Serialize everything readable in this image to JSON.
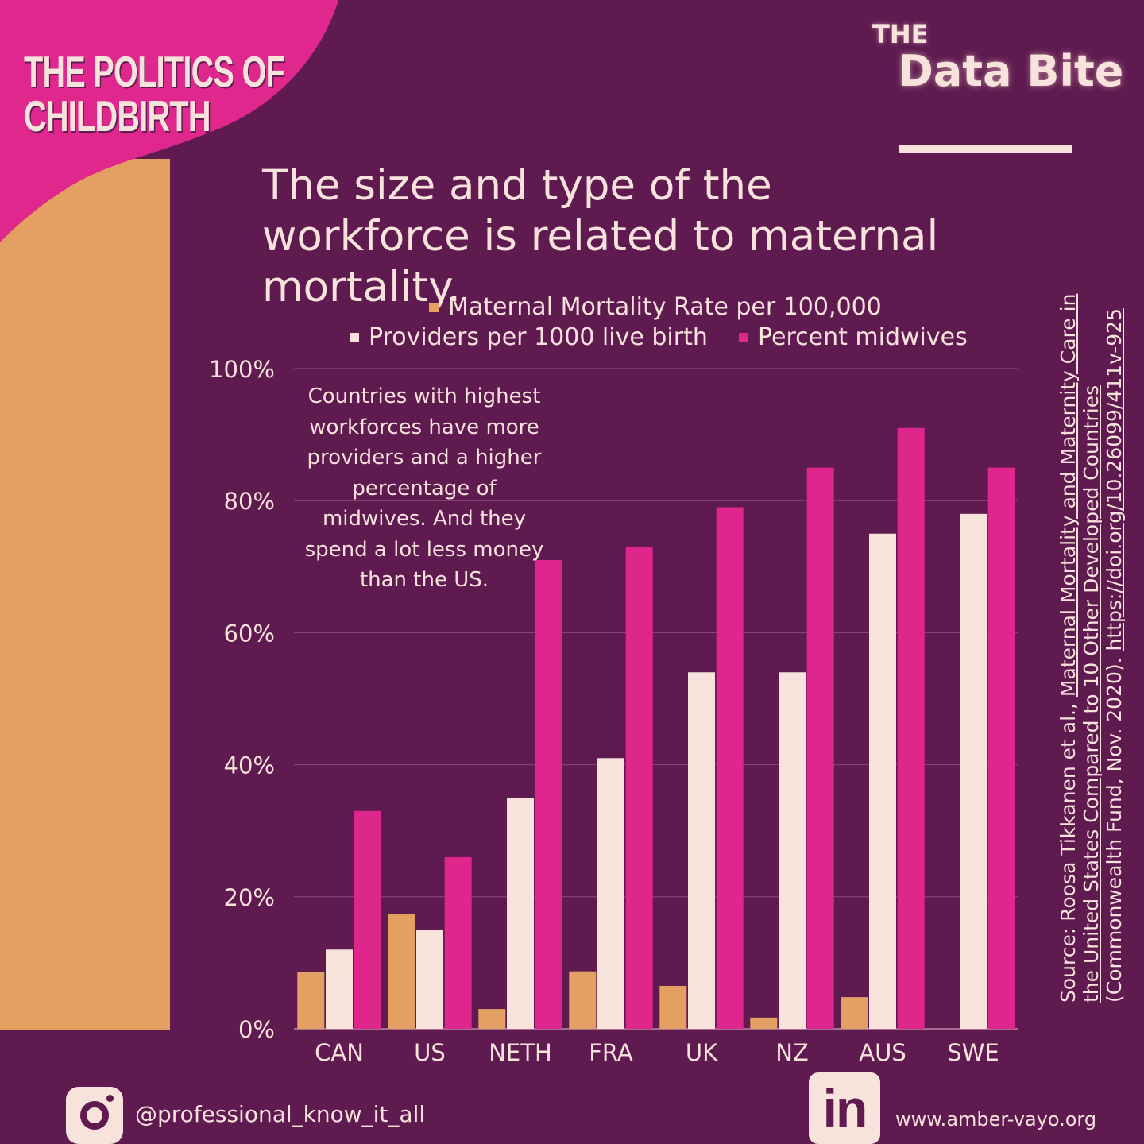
{
  "header": {
    "series_title_line1": "THE POLITICS OF",
    "series_title_line2": "CHILDBIRTH",
    "brand_the": "THE",
    "brand_name": "Data Bite"
  },
  "headline": "The size and type of the workforce is related to maternal mortality.",
  "annotation": "Countries with highest workforces have more providers and a higher percentage of midwives. And they spend a lot less money than the US.",
  "source": {
    "prefix": "Source: Roosa Tikkanen et al., ",
    "title": "Maternal Mortality and Maternity Care in the United States Compared to 10 Other Developed Countries",
    "publisher": " (Commonwealth Fund, Nov. 2020). ",
    "doi": "https://doi.org/10.26099/411v-925"
  },
  "footer": {
    "instagram_handle": "@professional_know_it_all",
    "linkedin_glyph": "in",
    "website": "www.amber-vayo.org"
  },
  "colors": {
    "background": "#5f1b50",
    "mortality": "#e4a062",
    "providers": "#f8e2dc",
    "midwives": "#de268c",
    "accent_pink": "#e0278e",
    "text": "#f8e2dc"
  },
  "chart_data": {
    "type": "bar",
    "categories": [
      "CAN",
      "US",
      "NETH",
      "FRA",
      "UK",
      "NZ",
      "AUS",
      "SWE"
    ],
    "series": [
      {
        "name": "Maternal Mortality Rate per 100,000",
        "color": "#e4a062",
        "values": [
          8.6,
          17.4,
          3.0,
          8.7,
          6.5,
          1.7,
          4.8,
          0
        ]
      },
      {
        "name": "Providers per 1000 live birth",
        "color": "#f8e2dc",
        "values": [
          12,
          15,
          35,
          41,
          54,
          54,
          75,
          78
        ]
      },
      {
        "name": "Percent midwives",
        "color": "#de268c",
        "values": [
          33,
          26,
          71,
          73,
          79,
          85,
          91,
          85
        ]
      }
    ],
    "y_ticks": [
      "0%",
      "20%",
      "40%",
      "60%",
      "80%",
      "100%"
    ],
    "ylim": [
      0,
      100
    ],
    "grid": true,
    "legend_position": "top"
  }
}
